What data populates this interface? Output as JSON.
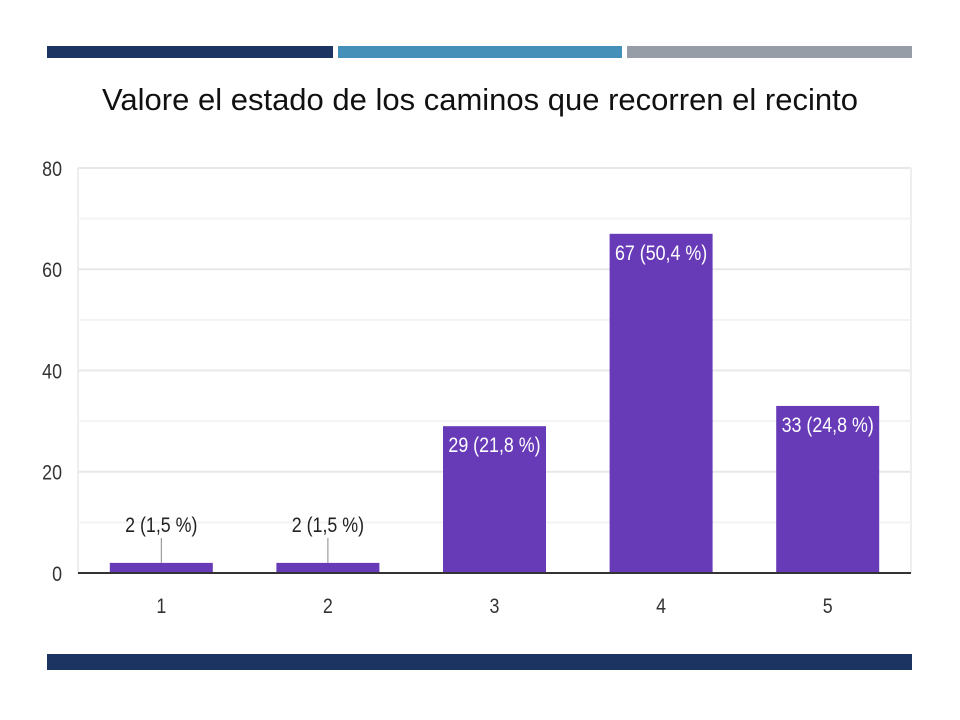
{
  "colors": {
    "stripe1": "#1b3461",
    "stripe2": "#4590b9",
    "stripe3": "#979da7",
    "bottom_bar": "#1b3461",
    "bar": "#673ab7"
  },
  "chart_data": {
    "type": "bar",
    "title": "Valore el estado de los caminos que recorren el recinto",
    "categories": [
      "1",
      "2",
      "3",
      "4",
      "5"
    ],
    "values": [
      2,
      2,
      29,
      67,
      33
    ],
    "data_labels": [
      "2 (1,5 %)",
      "2 (1,5 %)",
      "29 (21,8 %)",
      "67 (50,4 %)",
      "33 (24,8 %)"
    ],
    "ylim": [
      0,
      80
    ],
    "yticks": [
      "0",
      "20",
      "40",
      "60",
      "80"
    ],
    "grid": true,
    "xlabel": "",
    "ylabel": ""
  }
}
